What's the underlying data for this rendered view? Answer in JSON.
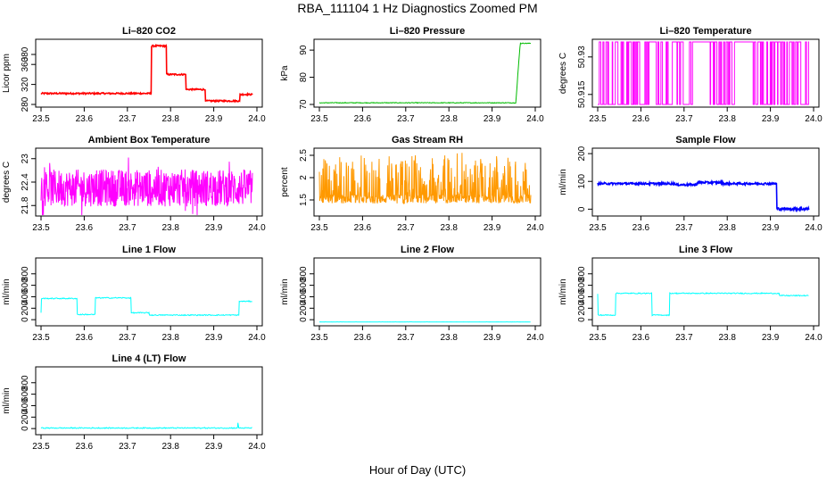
{
  "figure": {
    "title": "RBA_111104  1 Hz Diagnostics Zoomed PM",
    "xlabel": "Hour of Day (UTC)"
  },
  "chart_data": [
    {
      "type": "line",
      "title": "Li–820 CO2",
      "ylabel": "Licor ppm",
      "color": "#ff0000",
      "xlim": [
        23.5,
        24.0
      ],
      "ylim": [
        280,
        405
      ],
      "xticks": [
        23.5,
        23.6,
        23.7,
        23.8,
        23.9,
        24.0
      ],
      "yticks": [
        280,
        320,
        360,
        380
      ],
      "series": [
        {
          "name": "CO2",
          "x": [
            23.5,
            23.755,
            23.756,
            23.79,
            23.791,
            23.835,
            23.836,
            23.88,
            23.881,
            23.905,
            23.906,
            23.96,
            23.961,
            23.99
          ],
          "y": [
            302,
            302,
            397,
            397,
            340,
            340,
            310,
            310,
            287,
            287,
            287,
            287,
            300,
            300
          ]
        }
      ]
    },
    {
      "type": "line",
      "title": "Li–820 Pressure",
      "ylabel": "kPa",
      "color": "#00bb00",
      "xlim": [
        23.5,
        24.0
      ],
      "ylim": [
        70,
        93
      ],
      "xticks": [
        23.5,
        23.6,
        23.7,
        23.8,
        23.9,
        24.0
      ],
      "yticks": [
        70,
        80,
        90
      ],
      "series": [
        {
          "name": "Pressure",
          "x": [
            23.5,
            23.7,
            23.9,
            23.95,
            23.955,
            23.96,
            23.962,
            23.965,
            23.99
          ],
          "y": [
            70.6,
            70.6,
            70.5,
            70.4,
            73,
            82,
            90,
            92.5,
            92.5
          ]
        }
      ]
    },
    {
      "type": "line",
      "title": "Li–820 Temperature",
      "ylabel": "degrees C",
      "color": "#ff00ff",
      "xlim": [
        23.5,
        24.0
      ],
      "ylim": [
        50.911,
        50.936
      ],
      "xticks": [
        23.5,
        23.6,
        23.7,
        23.8,
        23.9,
        24.0
      ],
      "yticks": [
        50.915,
        50.93
      ],
      "series": [
        {
          "name": "Temperature",
          "x": [
            23.5,
            23.99
          ],
          "y": [
            50.911,
            50.936
          ]
        }
      ]
    },
    {
      "type": "line",
      "title": "Ambient Box Temperature",
      "ylabel": "degrees C",
      "color": "#ff00ff",
      "xlim": [
        23.5,
        24.0
      ],
      "ylim": [
        21.6,
        23.2
      ],
      "xticks": [
        23.5,
        23.6,
        23.7,
        23.8,
        23.9,
        24.0
      ],
      "yticks": [
        21.8,
        22.4,
        23.0
      ],
      "series": [
        {
          "name": "Box Temp",
          "x": [
            23.5,
            23.99
          ],
          "y": [
            21.75,
            23.1
          ]
        }
      ]
    },
    {
      "type": "line",
      "title": "Gas Stream RH",
      "ylabel": "percent",
      "color": "#ff9900",
      "xlim": [
        23.5,
        24.0
      ],
      "ylim": [
        1.2,
        2.6
      ],
      "xticks": [
        23.5,
        23.6,
        23.7,
        23.8,
        23.9,
        24.0
      ],
      "yticks": [
        1.5,
        2.0,
        2.5
      ],
      "series": [
        {
          "name": "RH",
          "x": [
            23.5,
            23.99
          ],
          "y": [
            1.25,
            2.5
          ]
        }
      ]
    },
    {
      "type": "line",
      "title": "Sample Flow",
      "ylabel": "ml/min",
      "color": "#0000ff",
      "xlim": [
        23.5,
        24.0
      ],
      "ylim": [
        -15,
        210
      ],
      "xticks": [
        23.5,
        23.6,
        23.7,
        23.8,
        23.9,
        24.0
      ],
      "yticks": [
        0,
        100,
        200
      ],
      "series": [
        {
          "name": "Sample Flow",
          "x": [
            23.5,
            23.65,
            23.7,
            23.76,
            23.8,
            23.91,
            23.915,
            23.99
          ],
          "y": [
            92,
            94,
            88,
            98,
            92,
            90,
            0,
            0
          ]
        }
      ]
    },
    {
      "type": "line",
      "title": "Line 1 Flow",
      "ylabel": "ml/min",
      "color": "#00ffff",
      "xlim": [
        23.5,
        24.0
      ],
      "ylim": [
        -60,
        1030
      ],
      "xticks": [
        23.5,
        23.6,
        23.7,
        23.8,
        23.9,
        24.0
      ],
      "yticks": [
        0,
        200,
        400,
        600,
        800
      ],
      "series": [
        {
          "name": "Line 1",
          "x": [
            23.5,
            23.501,
            23.583,
            23.584,
            23.625,
            23.626,
            23.708,
            23.709,
            23.75,
            23.751,
            23.958,
            23.959,
            23.99
          ],
          "y": [
            120,
            370,
            370,
            90,
            90,
            380,
            380,
            120,
            120,
            80,
            80,
            320,
            320
          ]
        }
      ]
    },
    {
      "type": "line",
      "title": "Line 2 Flow",
      "ylabel": "ml/min",
      "color": "#00ffff",
      "xlim": [
        23.5,
        24.0
      ],
      "ylim": [
        -60,
        1030
      ],
      "xticks": [
        23.5,
        23.6,
        23.7,
        23.8,
        23.9,
        24.0
      ],
      "yticks": [
        0,
        200,
        400,
        600,
        800
      ],
      "series": [
        {
          "name": "Line 2",
          "x": [
            23.5,
            23.99
          ],
          "y": [
            -40,
            -40
          ]
        }
      ]
    },
    {
      "type": "line",
      "title": "Line 3 Flow",
      "ylabel": "ml/min",
      "color": "#00ffff",
      "xlim": [
        23.5,
        24.0
      ],
      "ylim": [
        -60,
        1030
      ],
      "xticks": [
        23.5,
        23.6,
        23.7,
        23.8,
        23.9,
        24.0
      ],
      "yticks": [
        0,
        200,
        400,
        600,
        800
      ],
      "series": [
        {
          "name": "Line 3",
          "x": [
            23.5,
            23.501,
            23.541,
            23.542,
            23.625,
            23.626,
            23.666,
            23.667,
            23.92,
            23.921,
            23.99
          ],
          "y": [
            450,
            80,
            80,
            460,
            460,
            80,
            80,
            460,
            460,
            420,
            420
          ]
        }
      ]
    },
    {
      "type": "line",
      "title": "Line 4 (LT) Flow",
      "ylabel": "ml/min",
      "color": "#00ffff",
      "xlim": [
        23.5,
        24.0
      ],
      "ylim": [
        -60,
        1030
      ],
      "xticks": [
        23.5,
        23.6,
        23.7,
        23.8,
        23.9,
        24.0
      ],
      "yticks": [
        0,
        200,
        400,
        600,
        800
      ],
      "series": [
        {
          "name": "Line 4",
          "x": [
            23.5,
            23.955,
            23.956,
            23.958,
            23.959,
            23.99
          ],
          "y": [
            10,
            10,
            100,
            10,
            10,
            10
          ]
        }
      ]
    }
  ]
}
